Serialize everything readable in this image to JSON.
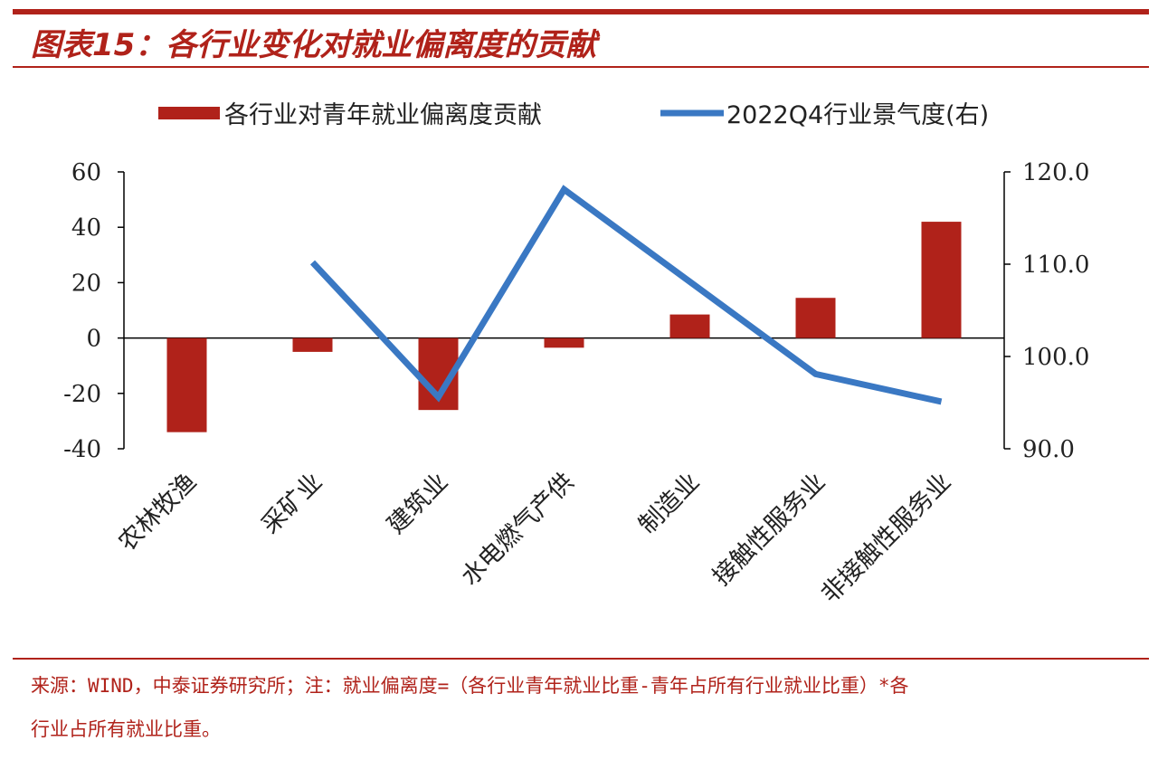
{
  "colors": {
    "accent": "#b0221a",
    "bar": "#b0221a",
    "line": "#3a78c3",
    "axis": "#000000",
    "text": "#222222"
  },
  "header": {
    "title": "图表15：各行业变化对就业偏离度的贡献"
  },
  "footer": {
    "source_line1": "来源：WIND，中泰证券研究所；注：就业偏离度=（各行业青年就业比重-青年占所有行业就业比重）*各",
    "source_line2": "行业占所有就业比重。"
  },
  "chart_data": {
    "type": "bar",
    "categories": [
      "农林牧渔",
      "采矿业",
      "建筑业",
      "水电燃气产供",
      "制造业",
      "接触性服务业",
      "非接触性服务业"
    ],
    "series": [
      {
        "name": "各行业对青年就业偏离度贡献",
        "type": "bar",
        "axis": "left",
        "values": [
          -34,
          -5,
          -26,
          -3.5,
          8.5,
          14.5,
          42
        ]
      },
      {
        "name": "2022Q4行业景气度(右)",
        "type": "line",
        "axis": "right",
        "values": [
          null,
          110.2,
          95.6,
          118.1,
          null,
          98.1,
          95.1
        ]
      }
    ],
    "left_axis": {
      "min": -40,
      "max": 60,
      "ticks": [
        "60",
        "40",
        "20",
        "0",
        "-20",
        "-40"
      ]
    },
    "right_axis": {
      "min": 90,
      "max": 120,
      "ticks": [
        "120.0",
        "110.0",
        "100.0",
        "90.0"
      ]
    },
    "legend_position": "top",
    "grid": false
  }
}
